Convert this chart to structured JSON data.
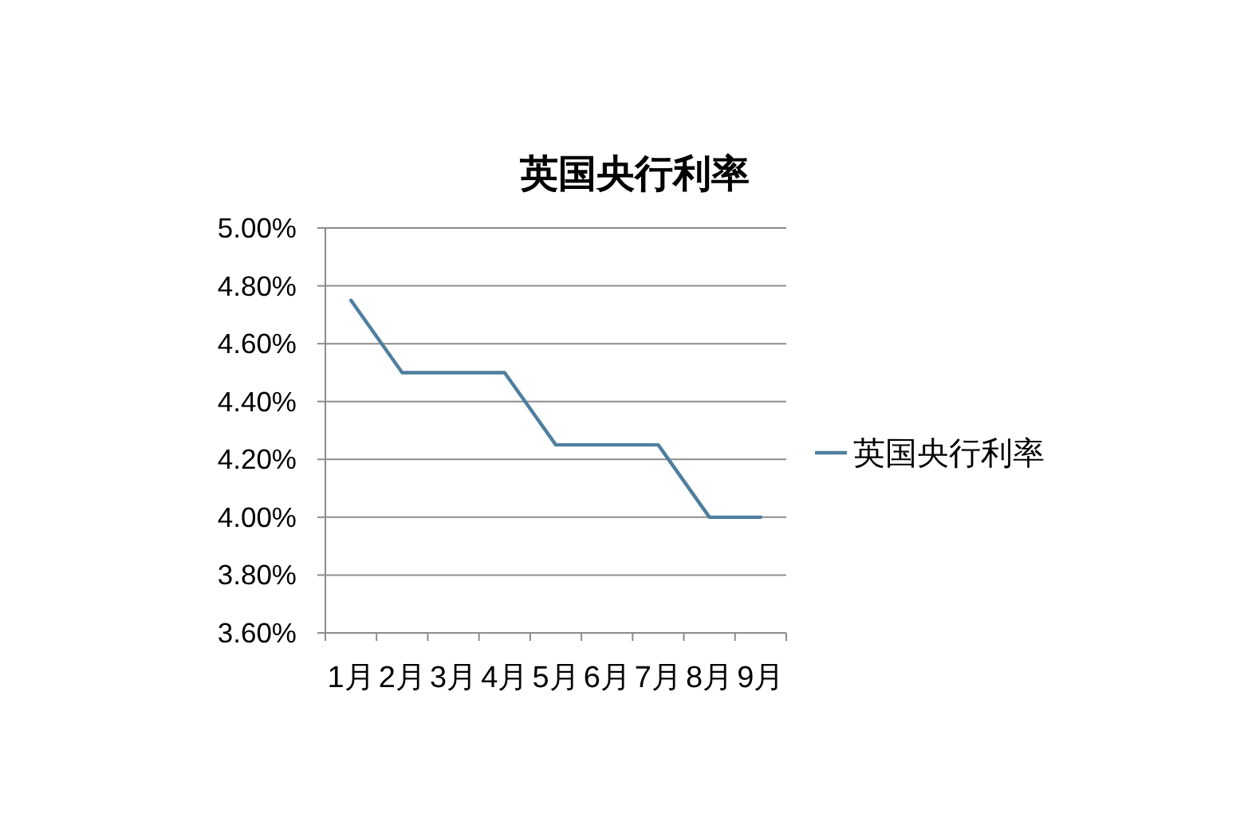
{
  "chart_data": {
    "type": "line",
    "title": "英国央行利率",
    "categories": [
      "1月",
      "2月",
      "3月",
      "4月",
      "5月",
      "6月",
      "7月",
      "8月",
      "9月"
    ],
    "series": [
      {
        "name": "英国央行利率",
        "color": "#4f7f9e",
        "values": [
          4.75,
          4.5,
          4.5,
          4.5,
          4.25,
          4.25,
          4.25,
          4.0,
          4.0
        ]
      }
    ],
    "ylim": [
      3.6,
      5.0
    ],
    "yticks": [
      {
        "value": 3.6,
        "label": "3.60%"
      },
      {
        "value": 3.8,
        "label": "3.80%"
      },
      {
        "value": 4.0,
        "label": "4.00%"
      },
      {
        "value": 4.2,
        "label": "4.20%"
      },
      {
        "value": 4.4,
        "label": "4.40%"
      },
      {
        "value": 4.6,
        "label": "4.60%"
      },
      {
        "value": 4.8,
        "label": "4.80%"
      },
      {
        "value": 5.0,
        "label": "5.00%"
      }
    ],
    "grid": "y",
    "legend": "right"
  }
}
